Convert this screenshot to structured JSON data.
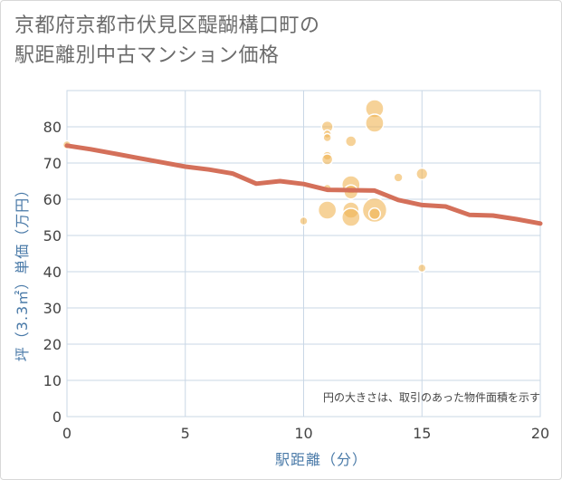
{
  "title": {
    "line1": "京都府京都市伏見区醍醐構口町の",
    "line2": "駅距離別中古マンション価格"
  },
  "chart_data": {
    "type": "scatter",
    "title": "京都府京都市伏見区醍醐構口町の駅距離別中古マンション価格",
    "xlabel": "駅距離（分）",
    "ylabel": "坪（3.3㎡）単価（万円）",
    "xlim": [
      0,
      20
    ],
    "ylim": [
      0,
      90
    ],
    "xticks": [
      0,
      5,
      10,
      15,
      20
    ],
    "yticks": [
      0,
      10,
      20,
      30,
      40,
      50,
      60,
      70,
      80
    ],
    "grid": true,
    "note": "円の大きさは、取引のあった物件面積を示す",
    "colors": {
      "bubble": "#f0b454",
      "trend": "#d4705a",
      "grid": "#c9d7e6",
      "axis_title": "#4a7aa8"
    },
    "scatter_points": [
      {
        "x": 0,
        "y": 75,
        "size": 1
      },
      {
        "x": 10,
        "y": 54,
        "size": 1
      },
      {
        "x": 11,
        "y": 80,
        "size": 2
      },
      {
        "x": 11,
        "y": 78,
        "size": 1
      },
      {
        "x": 11,
        "y": 77,
        "size": 1
      },
      {
        "x": 11,
        "y": 72,
        "size": 1.2
      },
      {
        "x": 11,
        "y": 71,
        "size": 1.8
      },
      {
        "x": 11,
        "y": 63,
        "size": 1
      },
      {
        "x": 11,
        "y": 57,
        "size": 5
      },
      {
        "x": 12,
        "y": 76,
        "size": 1.8
      },
      {
        "x": 12,
        "y": 64,
        "size": 5
      },
      {
        "x": 12,
        "y": 62,
        "size": 3
      },
      {
        "x": 12,
        "y": 57,
        "size": 4
      },
      {
        "x": 12,
        "y": 55,
        "size": 5
      },
      {
        "x": 13,
        "y": 85,
        "size": 5
      },
      {
        "x": 13,
        "y": 81,
        "size": 5
      },
      {
        "x": 13,
        "y": 57,
        "size": 9
      },
      {
        "x": 13,
        "y": 56,
        "size": 2
      },
      {
        "x": 14,
        "y": 66,
        "size": 1.2
      },
      {
        "x": 15,
        "y": 67,
        "size": 2
      },
      {
        "x": 15,
        "y": 41,
        "size": 1
      }
    ],
    "trend_line": {
      "x": [
        0,
        1,
        2,
        3,
        4,
        5,
        6,
        7,
        8,
        9,
        10,
        11,
        12,
        13,
        14,
        15,
        16,
        17,
        18,
        19,
        20
      ],
      "y": [
        74.8,
        73.8,
        72.6,
        71.4,
        70.2,
        69.0,
        68.2,
        67.1,
        64.3,
        65.0,
        64.2,
        62.6,
        62.5,
        62.4,
        59.8,
        58.4,
        58.0,
        55.7,
        55.5,
        54.5,
        53.3
      ]
    }
  }
}
